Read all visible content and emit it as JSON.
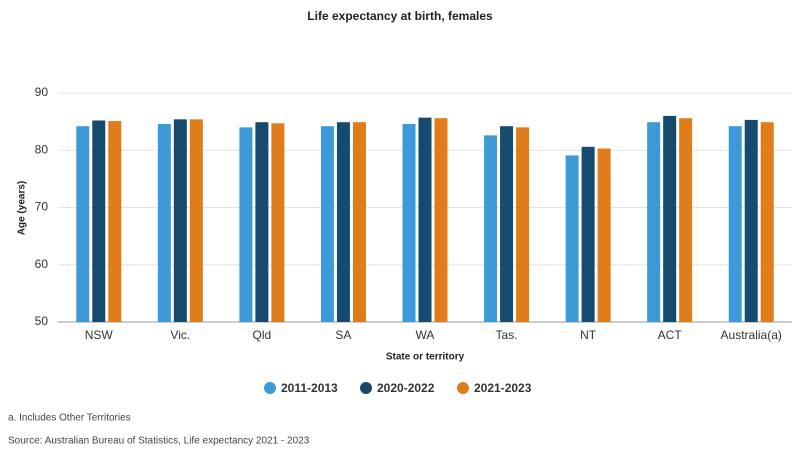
{
  "chart_data": {
    "type": "bar",
    "title": "Life expectancy at birth, females",
    "x_label": "State or territory",
    "y_label": "Age (years)",
    "categories": [
      "NSW",
      "Vic.",
      "Qld",
      "SA",
      "WA",
      "Tas.",
      "NT",
      "ACT",
      "Australia(a)"
    ],
    "series": [
      {
        "name": "2011-2013",
        "color": "#3d9ad6",
        "values": [
          84.2,
          84.6,
          84.0,
          84.2,
          84.6,
          82.6,
          79.1,
          84.9,
          84.2
        ]
      },
      {
        "name": "2020-2022",
        "color": "#164a6e",
        "values": [
          85.2,
          85.4,
          84.9,
          84.9,
          85.7,
          84.2,
          80.6,
          86.0,
          85.3
        ]
      },
      {
        "name": "2021-2023",
        "color": "#e07c1a",
        "values": [
          85.1,
          85.4,
          84.7,
          84.9,
          85.6,
          84.0,
          80.3,
          85.6,
          84.9
        ]
      }
    ],
    "ylim": [
      50,
      90
    ],
    "yticks": [
      50,
      60,
      70,
      80,
      90
    ],
    "grid": true,
    "legend": "bottom",
    "footnote": "a. Includes Other Territories",
    "source": "Source: Australian Bureau of Statistics, Life expectancy 2021 - 2023"
  }
}
